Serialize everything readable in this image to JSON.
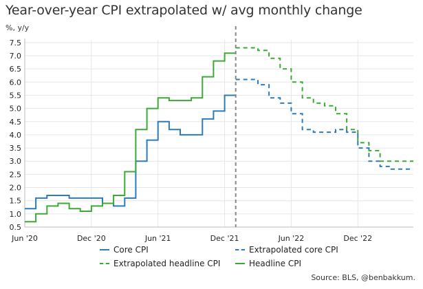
{
  "title": "Year-over-year CPI extrapolated w/ avg monthly change",
  "subtitle": "%, y/y",
  "source": "Source: BLS, @benbakkum.",
  "colors": {
    "core": "#2b7bba",
    "headline": "#3aaa35",
    "divider": "#888888",
    "grid": "#e6e6e6"
  },
  "chart_data": {
    "type": "line",
    "title": "Year-over-year CPI extrapolated w/ avg monthly change",
    "ylabel": "%, y/y",
    "xlabel": "",
    "ylim": [
      0.5,
      7.6
    ],
    "y_ticks": [
      "0.5",
      "1.0",
      "1.5",
      "2.0",
      "2.5",
      "3.0",
      "3.5",
      "4.0",
      "4.5",
      "5.0",
      "5.5",
      "6.0",
      "6.5",
      "7.0",
      "7.5"
    ],
    "x_ticks": [
      "Jun '20",
      "Dec '20",
      "Jun '21",
      "Dec '21",
      "Jun '22",
      "Dec '22"
    ],
    "x_range": [
      "2020-06",
      "2023-04"
    ],
    "forecast_start": "2022-01",
    "step": true,
    "grid": true,
    "legend_position": "bottom",
    "series": [
      {
        "name": "Core CPI",
        "style": "solid",
        "color": "#2b7bba",
        "x": [
          "2020-06",
          "2020-07",
          "2020-08",
          "2020-09",
          "2020-10",
          "2020-11",
          "2020-12",
          "2021-01",
          "2021-02",
          "2021-03",
          "2021-04",
          "2021-05",
          "2021-06",
          "2021-07",
          "2021-08",
          "2021-09",
          "2021-10",
          "2021-11",
          "2021-12"
        ],
        "values": [
          1.2,
          1.6,
          1.7,
          1.7,
          1.6,
          1.6,
          1.6,
          1.4,
          1.3,
          1.6,
          3.0,
          3.8,
          4.5,
          4.2,
          4.0,
          4.0,
          4.6,
          4.9,
          5.5
        ]
      },
      {
        "name": "Headline CPI",
        "style": "solid",
        "color": "#3aaa35",
        "x": [
          "2020-06",
          "2020-07",
          "2020-08",
          "2020-09",
          "2020-10",
          "2020-11",
          "2020-12",
          "2021-01",
          "2021-02",
          "2021-03",
          "2021-04",
          "2021-05",
          "2021-06",
          "2021-07",
          "2021-08",
          "2021-09",
          "2021-10",
          "2021-11",
          "2021-12"
        ],
        "values": [
          0.7,
          1.0,
          1.3,
          1.4,
          1.2,
          1.1,
          1.3,
          1.4,
          1.7,
          2.6,
          4.2,
          5.0,
          5.4,
          5.3,
          5.3,
          5.4,
          6.2,
          6.8,
          7.1
        ]
      },
      {
        "name": "Extrapolated core CPI",
        "style": "dashed",
        "color": "#2b7bba",
        "x": [
          "2022-01",
          "2022-02",
          "2022-03",
          "2022-04",
          "2022-05",
          "2022-06",
          "2022-07",
          "2022-08",
          "2022-09",
          "2022-10",
          "2022-11",
          "2022-12",
          "2023-01",
          "2023-02",
          "2023-03",
          "2023-04"
        ],
        "values": [
          6.1,
          6.1,
          5.9,
          5.4,
          5.2,
          4.8,
          4.2,
          4.1,
          4.1,
          4.2,
          4.1,
          3.5,
          3.0,
          2.8,
          2.7,
          2.7
        ]
      },
      {
        "name": "Extrapolated headline CPI",
        "style": "dashed",
        "color": "#3aaa35",
        "x": [
          "2022-01",
          "2022-02",
          "2022-03",
          "2022-04",
          "2022-05",
          "2022-06",
          "2022-07",
          "2022-08",
          "2022-09",
          "2022-10",
          "2022-11",
          "2022-12",
          "2023-01",
          "2023-02",
          "2023-03",
          "2023-04"
        ],
        "values": [
          7.3,
          7.3,
          7.2,
          6.9,
          6.5,
          6.0,
          5.4,
          5.2,
          5.1,
          4.8,
          4.2,
          3.7,
          3.4,
          3.0,
          3.0,
          3.0
        ]
      }
    ]
  }
}
